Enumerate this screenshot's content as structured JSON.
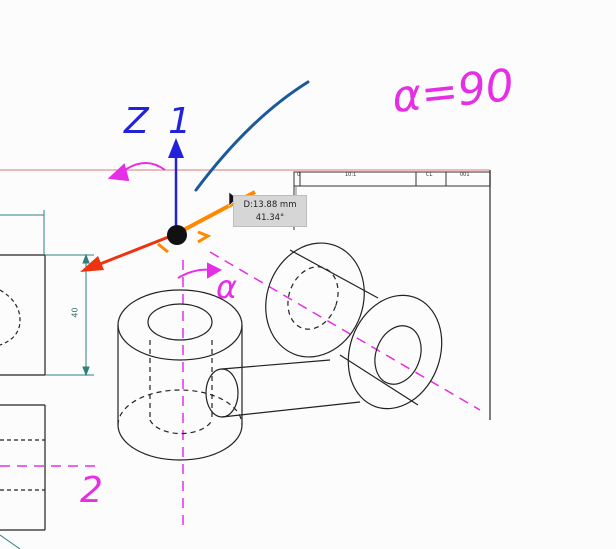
{
  "annotations": {
    "alpha_equation": "α=90",
    "alpha_symbol": "α",
    "axis_label": "Z 1",
    "view_number": "2"
  },
  "tooltip": {
    "distance": "D:13.88 mm",
    "angle": "41.34°"
  },
  "dimension": {
    "value": "40"
  },
  "title_block": {
    "cell_1": "0",
    "cell_2": "10:1",
    "cell_3": "CL",
    "cell_4": "001"
  },
  "colors": {
    "annotation_magenta": "#e62ee6",
    "z_axis_blue": "#2222dd",
    "x_axis_red": "#ee3311",
    "handle_orange": "#ff8800",
    "pen_stroke_blue": "#1a5a9a",
    "dimension_teal": "#2e8080"
  }
}
